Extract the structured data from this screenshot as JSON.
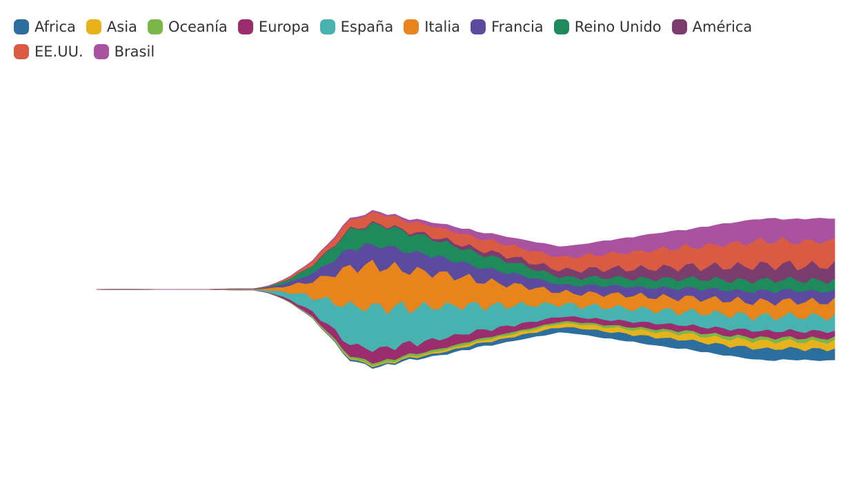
{
  "chart_data": {
    "type": "area",
    "subtype": "streamgraph",
    "title": "",
    "xlabel": "",
    "ylabel": "",
    "axes_shown": false,
    "grid": false,
    "legend_position": "top-left",
    "x_count": 100,
    "series": [
      {
        "name": "Africa",
        "color": "#2c6e9e",
        "base": 0.1,
        "growth": 1.0,
        "peak": 0.3
      },
      {
        "name": "Asia",
        "color": "#e8b21c",
        "base": 0.1,
        "growth": 1.0,
        "peak": 0.2
      },
      {
        "name": "Oceanía",
        "color": "#7ab648",
        "base": 0.12,
        "growth": 0.2,
        "peak": 0.4
      },
      {
        "name": "Europa",
        "color": "#9b2d6e",
        "base": 0.35,
        "growth": 0.15,
        "peak": 0.7
      },
      {
        "name": "España",
        "color": "#47b2b0",
        "base": 0.9,
        "growth": 0.15,
        "peak": 0.9
      },
      {
        "name": "Italia",
        "color": "#e8841c",
        "base": 0.9,
        "growth": 0.15,
        "peak": 0.9
      },
      {
        "name": "Francia",
        "color": "#5b4a9e",
        "base": 0.5,
        "growth": 0.2,
        "peak": 0.8
      },
      {
        "name": "Reino Unido",
        "color": "#1f8a5c",
        "base": 0.5,
        "growth": 0.2,
        "peak": 0.8
      },
      {
        "name": "América",
        "color": "#7a3d6e",
        "base": 0.05,
        "growth": 1.0,
        "peak": 0.4
      },
      {
        "name": "EE.UU.",
        "color": "#d95b43",
        "base": 0.2,
        "growth": 0.6,
        "peak": 1.0
      },
      {
        "name": "Brasil",
        "color": "#a9529f",
        "base": 0.05,
        "growth": 1.0,
        "peak": 0.6
      }
    ]
  }
}
